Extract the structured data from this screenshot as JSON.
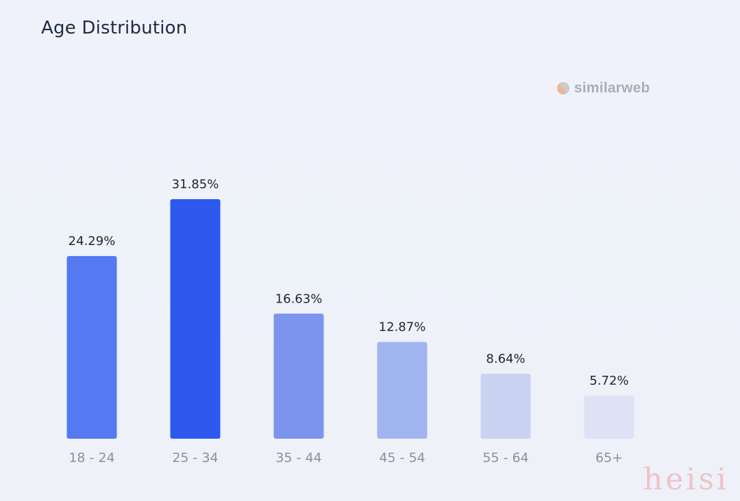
{
  "title": "Age Distribution",
  "logo": {
    "text": "similarweb",
    "icon": "similarweb-logo-icon"
  },
  "watermark": "heisi",
  "colors": {
    "background": "#eef1f8",
    "title": "#1f2a44",
    "value_label": "#1f2430",
    "tick_label": "#8a8f9b",
    "bars": [
      "#5479f1",
      "#2d59ef",
      "#7b95ee",
      "#a0b5f0",
      "#c9d2f1",
      "#dde3f5"
    ]
  },
  "chart_data": {
    "type": "bar",
    "categories": [
      "18 - 24",
      "25 - 34",
      "35 - 44",
      "45 - 54",
      "55 - 64",
      "65+"
    ],
    "values": [
      24.29,
      31.85,
      16.63,
      12.87,
      8.64,
      5.72
    ],
    "value_labels": [
      "24.29%",
      "31.85%",
      "16.63%",
      "12.87%",
      "8.64%",
      "5.72%"
    ],
    "xlabel": "",
    "ylabel": "",
    "ylim": [
      0,
      31.85
    ],
    "grid": false,
    "legend": "none"
  }
}
